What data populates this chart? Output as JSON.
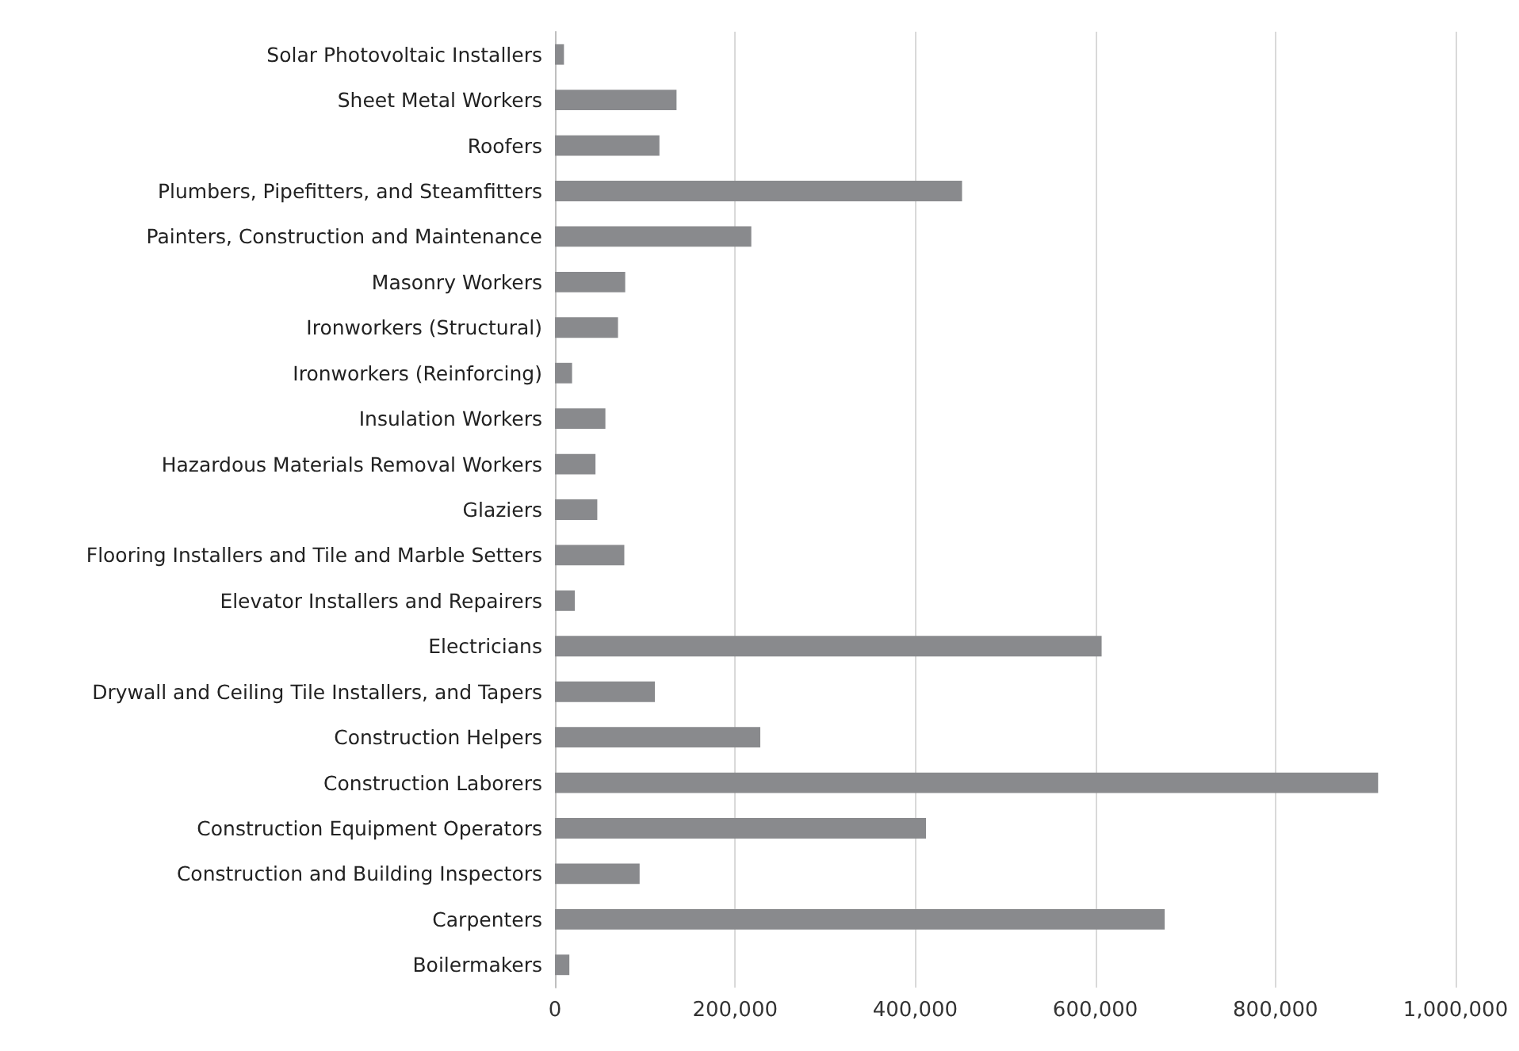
{
  "chart_data": {
    "type": "bar",
    "orientation": "horizontal",
    "categories": [
      "Solar Photovoltaic Installers",
      "Sheet Metal Workers",
      "Roofers",
      "Plumbers, Pipefitters, and Steamfitters",
      "Painters, Construction and Maintenance",
      "Masonry Workers",
      "Ironworkers (Structural)",
      "Ironworkers (Reinforcing)",
      "Insulation Workers",
      "Hazardous Materials Removal Workers",
      "Glaziers",
      "Flooring Installers and Tile and Marble Setters",
      "Elevator Installers and Repairers",
      "Electricians",
      "Drywall and Ceiling Tile Installers, and Tapers",
      "Construction Helpers",
      "Construction Laborers",
      "Construction Equipment Operators",
      "Construction and Building Inspectors",
      "Carpenters",
      "Boilermakers"
    ],
    "values": [
      10000,
      135000,
      116000,
      452000,
      218000,
      78000,
      70000,
      19000,
      56000,
      45000,
      47000,
      77000,
      22000,
      607000,
      111000,
      228000,
      914000,
      412000,
      94000,
      677000,
      16000
    ],
    "color": "#898a8d",
    "xlim": [
      0,
      1000000
    ],
    "xticks": [
      0,
      {
        "value": 200000,
        "label": "200,000"
      },
      {
        "value": 400000,
        "label": "400,000"
      },
      {
        "value": 600000,
        "label": "600,000"
      },
      {
        "value": 800000,
        "label": "800,000"
      },
      {
        "value": 1000000,
        "label": "1,000,000"
      }
    ],
    "grid": "x"
  }
}
